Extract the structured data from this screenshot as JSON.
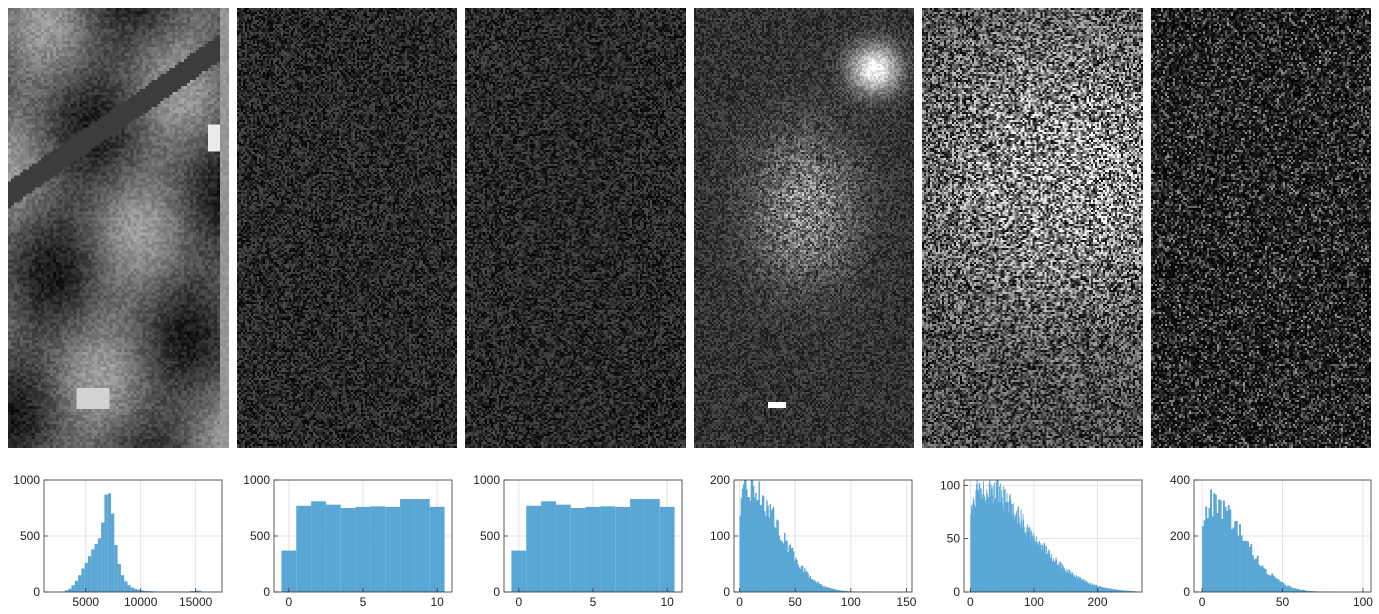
{
  "chart_data": [
    {
      "type": "bar",
      "title": "",
      "xlabel": "",
      "ylabel": "",
      "xlim": [
        1200,
        17400
      ],
      "ylim": [
        0,
        1000
      ],
      "xticks": [
        5000,
        10000,
        15000
      ],
      "xtick_labels": [
        "5000",
        "10000",
        "15000"
      ],
      "yticks": [
        0,
        500,
        1000
      ],
      "ytick_labels": [
        "0",
        "500",
        "1000"
      ],
      "grid": true,
      "color": "#5aa7d6",
      "bins": [
        2800,
        3100,
        3400,
        3700,
        4000,
        4300,
        4600,
        4900,
        5200,
        5500,
        5800,
        6100,
        6400,
        6700,
        7000,
        7300,
        7600,
        7900,
        8200,
        8500,
        8800,
        9100,
        9400,
        9700,
        10000,
        10300,
        10600,
        11000,
        11500,
        12000,
        12500,
        13000,
        13500,
        14000,
        14500,
        15000,
        15500,
        16000
      ],
      "values": [
        5,
        15,
        30,
        60,
        100,
        150,
        210,
        260,
        320,
        380,
        430,
        480,
        620,
        870,
        880,
        700,
        420,
        250,
        150,
        95,
        60,
        40,
        28,
        20,
        14,
        10,
        8,
        6,
        4,
        4,
        3,
        5,
        3,
        2,
        8,
        12,
        3,
        2
      ]
    },
    {
      "type": "bar",
      "title": "",
      "xlabel": "",
      "ylabel": "",
      "xlim": [
        -1,
        11
      ],
      "ylim": [
        0,
        1000
      ],
      "xticks": [
        0,
        5,
        10
      ],
      "xtick_labels": [
        "0",
        "5",
        "10"
      ],
      "yticks": [
        0,
        500,
        1000
      ],
      "ytick_labels": [
        "0",
        "500",
        "1000"
      ],
      "grid": true,
      "color": "#5aa7d6",
      "bin_edges": [
        -0.5,
        0.5,
        1.5,
        2.5,
        3.5,
        4.5,
        5.5,
        6.5,
        7.5,
        8.5,
        9.5,
        10.5
      ],
      "values": [
        370,
        770,
        810,
        780,
        750,
        760,
        765,
        760,
        830,
        830,
        760
      ]
    },
    {
      "type": "bar",
      "title": "",
      "xlabel": "",
      "ylabel": "",
      "xlim": [
        -1,
        11
      ],
      "ylim": [
        0,
        1000
      ],
      "xticks": [
        0,
        5,
        10
      ],
      "xtick_labels": [
        "0",
        "5",
        "10"
      ],
      "yticks": [
        0,
        500,
        1000
      ],
      "ytick_labels": [
        "0",
        "500",
        "1000"
      ],
      "grid": true,
      "color": "#5aa7d6",
      "bin_edges": [
        -0.5,
        0.5,
        1.5,
        2.5,
        3.5,
        4.5,
        5.5,
        6.5,
        7.5,
        8.5,
        9.5,
        10.5
      ],
      "values": [
        370,
        770,
        810,
        780,
        750,
        760,
        765,
        760,
        830,
        830,
        760
      ]
    },
    {
      "type": "bar",
      "title": "",
      "xlabel": "",
      "ylabel": "",
      "xlim": [
        -5,
        155
      ],
      "ylim": [
        0,
        200
      ],
      "xticks": [
        0,
        50,
        100,
        150
      ],
      "xtick_labels": [
        "0",
        "50",
        "100",
        "150"
      ],
      "yticks": [
        0,
        100,
        200
      ],
      "ytick_labels": [
        "0",
        "100",
        "200"
      ],
      "grid": true,
      "color": "#5aa7d6",
      "curve": {
        "x_start": 0,
        "x_end": 150,
        "peak_x": 5,
        "peak_y": 190,
        "decay": 28
      }
    },
    {
      "type": "bar",
      "title": "",
      "xlabel": "",
      "ylabel": "",
      "xlim": [
        -10,
        270
      ],
      "ylim": [
        0,
        105
      ],
      "xticks": [
        0,
        100,
        200
      ],
      "xtick_labels": [
        "0",
        "100",
        "200"
      ],
      "yticks": [
        0,
        50,
        100
      ],
      "ytick_labels": [
        "0",
        "50",
        "100"
      ],
      "grid": true,
      "color": "#5aa7d6",
      "curve": {
        "x_start": 0,
        "x_end": 260,
        "peak_x": 10,
        "peak_y": 100,
        "decay": 75
      }
    },
    {
      "type": "bar",
      "title": "",
      "xlabel": "",
      "ylabel": "",
      "xlim": [
        -5,
        105
      ],
      "ylim": [
        0,
        400
      ],
      "xticks": [
        0,
        50,
        100
      ],
      "xtick_labels": [
        "0",
        "50",
        "100"
      ],
      "yticks": [
        0,
        200,
        400
      ],
      "ytick_labels": [
        "0",
        "200",
        "400"
      ],
      "grid": true,
      "color": "#5aa7d6",
      "curve": {
        "x_start": 0,
        "x_end": 100,
        "peak_x": 4,
        "peak_y": 320,
        "decay": 20
      }
    }
  ]
}
